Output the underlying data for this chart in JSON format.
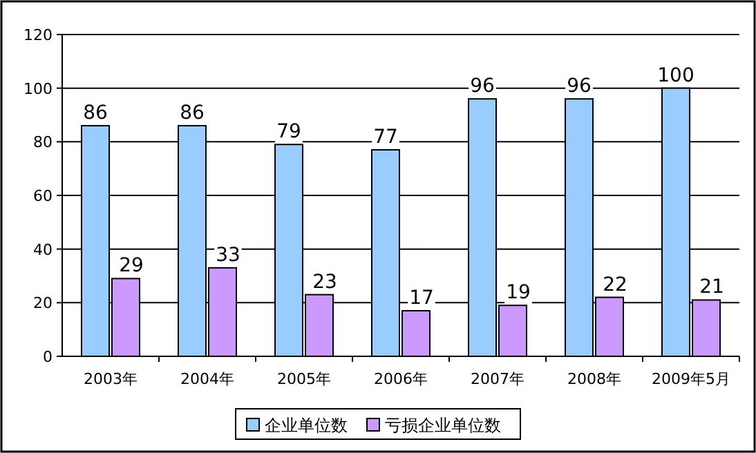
{
  "chart_data": {
    "type": "bar",
    "categories": [
      "2003年",
      "2004年",
      "2005年",
      "2006年",
      "2007年",
      "2008年",
      "2009年5月"
    ],
    "series": [
      {
        "name": "企业单位数",
        "color": "#99ccff",
        "values": [
          86,
          86,
          79,
          77,
          96,
          96,
          100
        ]
      },
      {
        "name": "亏损企业单位数",
        "color": "#cc99ff",
        "values": [
          29,
          33,
          23,
          17,
          19,
          22,
          21
        ]
      }
    ],
    "ylim": [
      0,
      120
    ],
    "yticks": [
      0,
      20,
      40,
      60,
      80,
      100,
      120
    ],
    "grid": "y",
    "legend": "bottom",
    "data_labels": true
  }
}
